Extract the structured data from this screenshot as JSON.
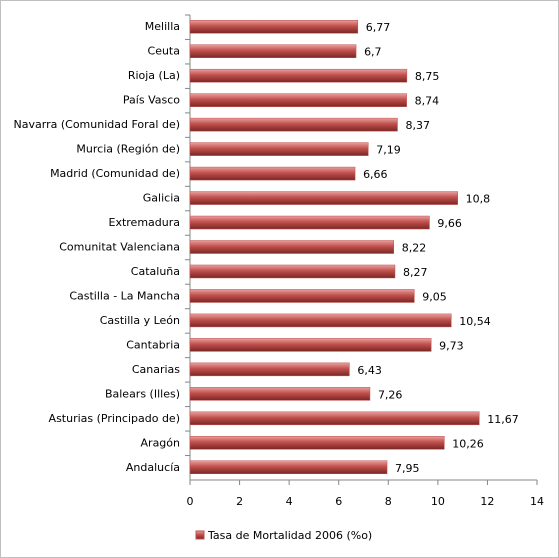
{
  "chart_data": {
    "type": "bar",
    "orientation": "horizontal",
    "categories": [
      "Melilla",
      "Ceuta",
      "Rioja (La)",
      "País Vasco",
      "Navarra (Comunidad Foral de)",
      "Murcia (Región de)",
      "Madrid (Comunidad de)",
      "Galicia",
      "Extremadura",
      "Comunitat Valenciana",
      "Cataluña",
      "Castilla - La Mancha",
      "Castilla y León",
      "Cantabria",
      "Canarias",
      "Balears (Illes)",
      "Asturias (Principado de)",
      "Aragón",
      "Andalucía"
    ],
    "series": [
      {
        "name": "Tasa de Mortalidad  2006 (%o)",
        "color": "#c0504d",
        "values": [
          6.77,
          6.7,
          8.75,
          8.74,
          8.37,
          7.19,
          6.66,
          10.8,
          9.66,
          8.22,
          8.27,
          9.05,
          10.54,
          9.73,
          6.43,
          7.26,
          11.67,
          10.26,
          7.95
        ],
        "value_labels": [
          "6,77",
          "6,7",
          "8,75",
          "8,74",
          "8,37",
          "7,19",
          "6,66",
          "10,8",
          "9,66",
          "8,22",
          "8,27",
          "9,05",
          "10,54",
          "9,73",
          "6,43",
          "7,26",
          "11,67",
          "10,26",
          "7,95"
        ]
      }
    ],
    "xlim": [
      0,
      14
    ],
    "xticks": [
      0,
      2,
      4,
      6,
      8,
      10,
      12,
      14
    ],
    "legend": "bottom"
  }
}
